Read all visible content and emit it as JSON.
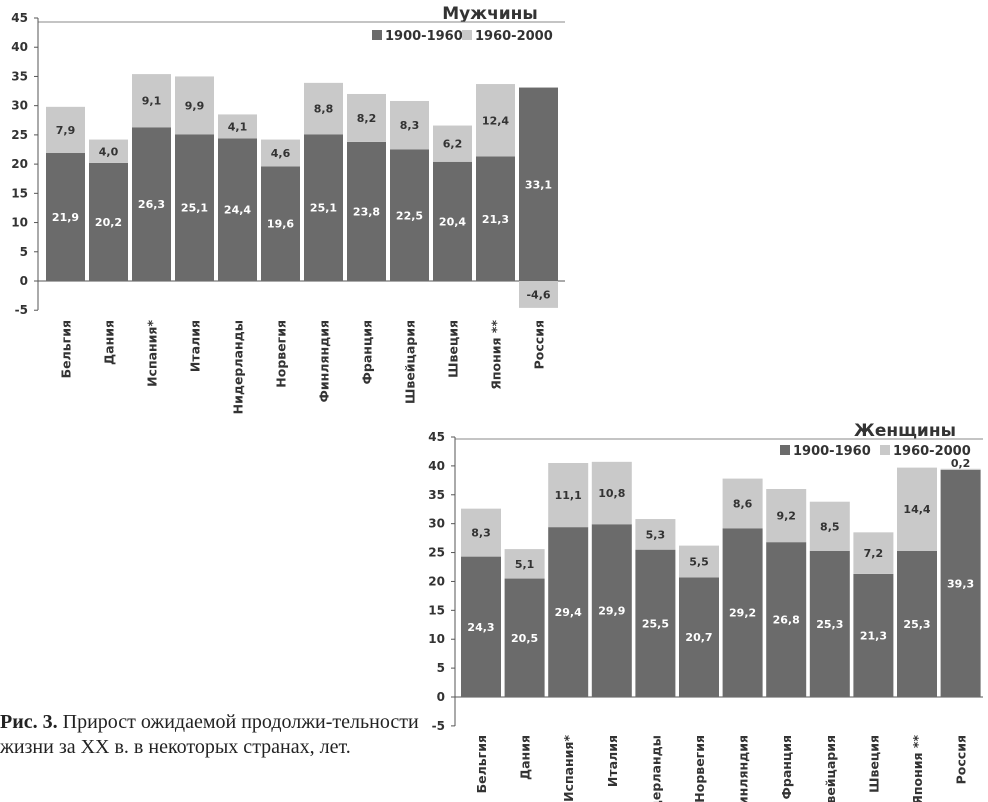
{
  "figure": {
    "caption_label": "Рис. 3.",
    "caption_text": "Прирост ожидаемой продолжи-тельности жизни за XX в. в некоторых странах, лет."
  },
  "colors": {
    "dark": "#6b6b6b",
    "light": "#c9c9c9",
    "axis": "#555555",
    "grid": "#8a8a8a"
  },
  "chart_data": [
    {
      "type": "bar",
      "stacked": true,
      "title": "Мужчины",
      "ylim": [
        -5,
        45
      ],
      "yticks": [
        -5,
        0,
        5,
        10,
        15,
        20,
        25,
        30,
        35,
        40,
        45
      ],
      "legend": "top-right",
      "grid": false,
      "categories": [
        "Бельгия",
        "Дания",
        "Испания*",
        "Италия",
        "Нидерланды",
        "Норвегия",
        "Финляндия",
        "Франция",
        "Швейцария",
        "Швеция",
        "Япония **",
        "Россия"
      ],
      "series": [
        {
          "name": "1900-1960",
          "color": "#6b6b6b",
          "values": [
            21.9,
            20.2,
            26.3,
            25.1,
            24.4,
            19.6,
            25.1,
            23.8,
            22.5,
            20.4,
            21.3,
            33.1
          ],
          "labels": [
            "21,9",
            "20,2",
            "26,3",
            "25,1",
            "24,4",
            "19,6",
            "25,1",
            "23,8",
            "22,5",
            "20,4",
            "21,3",
            "33,1"
          ]
        },
        {
          "name": "1960-2000",
          "color": "#c9c9c9",
          "values": [
            7.9,
            4.0,
            9.1,
            9.9,
            4.1,
            4.6,
            8.8,
            8.2,
            8.3,
            6.2,
            12.4,
            -4.6
          ],
          "labels": [
            "7,9",
            "4,0",
            "9,1",
            "9,9",
            "4,1",
            "4,6",
            "8,8",
            "8,2",
            "8,3",
            "6,2",
            "12,4",
            "-4,6"
          ]
        }
      ]
    },
    {
      "type": "bar",
      "stacked": true,
      "title": "Женщины",
      "ylim": [
        -5,
        45
      ],
      "yticks": [
        -5,
        0,
        5,
        10,
        15,
        20,
        25,
        30,
        35,
        40,
        45
      ],
      "legend": "top-right",
      "grid": false,
      "categories": [
        "Бельгия",
        "Дания",
        "Испания*",
        "Италия",
        "Нидерланды",
        "Норвегия",
        "Финляндия",
        "Франция",
        "Швейцария",
        "Швеция",
        "Япония **",
        "Россия"
      ],
      "series": [
        {
          "name": "1900-1960",
          "color": "#6b6b6b",
          "values": [
            24.3,
            20.5,
            29.4,
            29.9,
            25.5,
            20.7,
            29.2,
            26.8,
            25.3,
            21.3,
            25.3,
            39.3
          ],
          "labels": [
            "24,3",
            "20,5",
            "29,4",
            "29,9",
            "25,5",
            "20,7",
            "29,2",
            "26,8",
            "25,3",
            "21,3",
            "25,3",
            "39,3"
          ]
        },
        {
          "name": "1960-2000",
          "color": "#c9c9c9",
          "values": [
            8.3,
            5.1,
            11.1,
            10.8,
            5.3,
            5.5,
            8.6,
            9.2,
            8.5,
            7.2,
            14.4,
            0.2
          ],
          "labels": [
            "8,3",
            "5,1",
            "11,1",
            "10,8",
            "5,3",
            "5,5",
            "8,6",
            "9,2",
            "8,5",
            "7,2",
            "14,4",
            "0,2"
          ]
        }
      ]
    }
  ]
}
